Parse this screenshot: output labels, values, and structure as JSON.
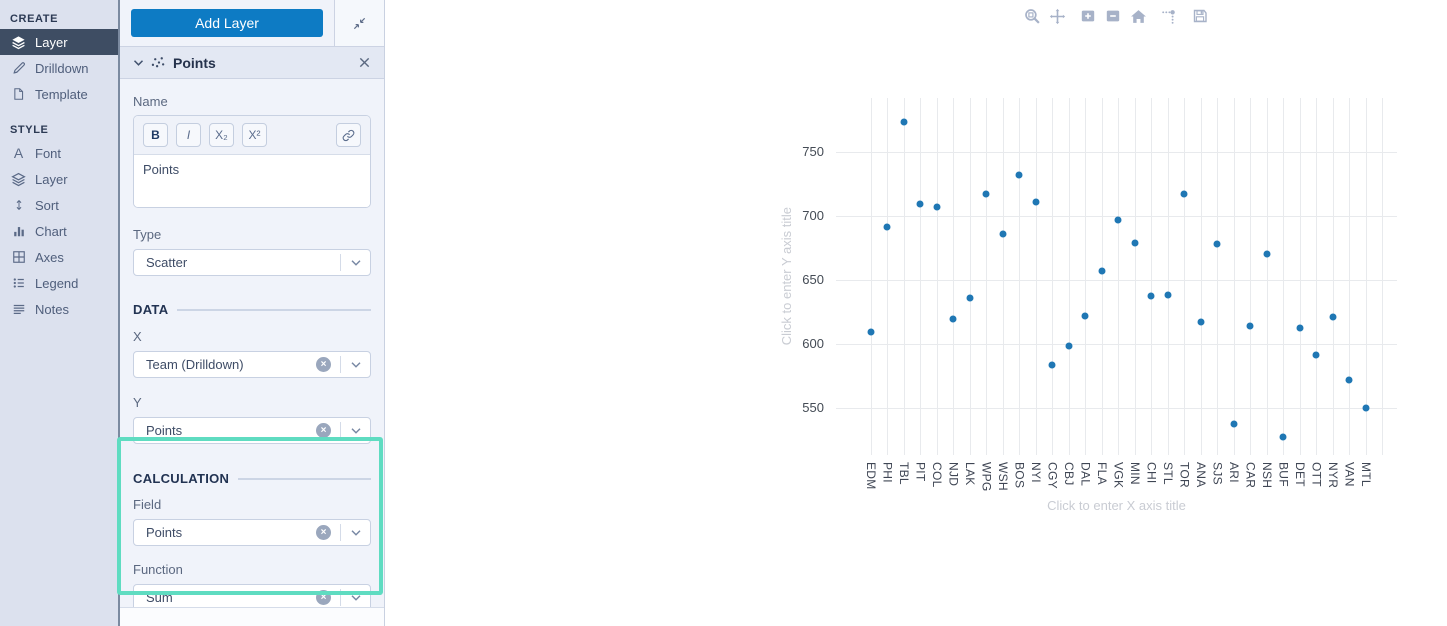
{
  "sidebar": {
    "create_title": "CREATE",
    "style_title": "STYLE",
    "create_items": [
      {
        "label": "Layer",
        "selected": true
      },
      {
        "label": "Drilldown",
        "selected": false
      },
      {
        "label": "Template",
        "selected": false
      }
    ],
    "style_items": [
      {
        "label": "Font"
      },
      {
        "label": "Layer"
      },
      {
        "label": "Sort"
      },
      {
        "label": "Chart"
      },
      {
        "label": "Axes"
      },
      {
        "label": "Legend"
      },
      {
        "label": "Notes"
      }
    ]
  },
  "panel": {
    "add_layer_label": "Add Layer",
    "layer_title": "Points",
    "name_label": "Name",
    "name_value": "Points",
    "format": {
      "bold": "B",
      "italic": "I",
      "subscript": "X₂",
      "superscript": "X²"
    },
    "type_label": "Type",
    "type_value": "Scatter",
    "data_section": {
      "title": "DATA",
      "x_label": "X",
      "x_value": "Team (Drilldown)",
      "y_label": "Y",
      "y_value": "Points"
    },
    "calculation_section": {
      "title": "CALCULATION",
      "field_label": "Field",
      "field_value": "Points",
      "function_label": "Function",
      "function_value": "Sum"
    }
  },
  "toolbar_icons": [
    "box-zoom",
    "pan",
    "zoom-in",
    "zoom-out",
    "reset-home",
    "toggle-spikelines",
    "save"
  ],
  "colors": {
    "accent_blue": "#0d7bc4",
    "highlight_teal": "#5fdcc1",
    "selected_nav": "#3e4d63",
    "marker_blue": "#1f77b4"
  },
  "chart_data": {
    "type": "scatter",
    "title": "",
    "categories": [
      "EDM",
      "PHI",
      "TBL",
      "PIT",
      "COL",
      "NJD",
      "LAK",
      "WPG",
      "WSH",
      "BOS",
      "NYI",
      "CGY",
      "CBJ",
      "DAL",
      "FLA",
      "VGK",
      "MIN",
      "CHI",
      "STL",
      "TOR",
      "ANA",
      "SJS",
      "ARI",
      "CAR",
      "NSH",
      "BUF",
      "DET",
      "OTT",
      "NYR",
      "VAN",
      "MTL"
    ],
    "values": [
      609,
      691,
      773,
      709,
      707,
      619,
      636,
      717,
      686,
      732,
      711,
      583,
      598,
      622,
      657,
      697,
      679,
      637,
      638,
      717,
      617,
      678,
      537,
      614,
      670,
      527,
      612,
      591,
      621,
      572,
      550
    ],
    "yticks": [
      550,
      600,
      650,
      700,
      750
    ],
    "ylim": [
      513,
      792
    ],
    "x_range": [
      -2.1,
      31.9
    ],
    "grid": true,
    "legend": "none",
    "marker_color": "#1f77b4",
    "xlabel_placeholder": "Click to enter X axis title",
    "ylabel_placeholder": "Click to enter Y axis title"
  }
}
